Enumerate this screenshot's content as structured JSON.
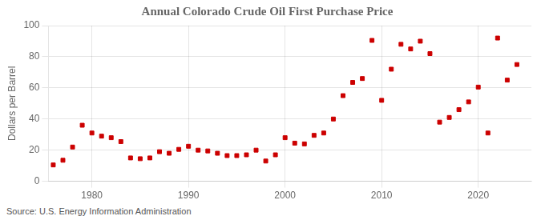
{
  "chart_data": {
    "type": "scatter",
    "title": "Annual Colorado Crude Oil First Purchase Price",
    "ylabel": "Dollars per Barrel",
    "annotation": "Source: U.S. Energy Information Administration",
    "x": [
      1976,
      1977,
      1978,
      1979,
      1980,
      1981,
      1982,
      1983,
      1984,
      1985,
      1986,
      1987,
      1988,
      1989,
      1990,
      1991,
      1992,
      1993,
      1994,
      1995,
      1996,
      1997,
      1998,
      1999,
      2000,
      2001,
      2002,
      2003,
      2004,
      2005,
      2006,
      2007,
      2008,
      2009,
      2010,
      2011,
      2012,
      2013,
      2014,
      2015,
      2016,
      2017,
      2018,
      2019,
      2020,
      2021,
      2022,
      2023,
      2024
    ],
    "values": [
      10.5,
      13.5,
      22.0,
      36.0,
      31.0,
      29.0,
      28.0,
      25.5,
      15.0,
      14.5,
      15.0,
      19.0,
      18.0,
      20.5,
      22.5,
      20.0,
      19.5,
      18.0,
      16.5,
      16.5,
      17.0,
      20.0,
      13.0,
      17.0,
      28.0,
      24.5,
      24.0,
      29.5,
      31.0,
      40.0,
      55.0,
      63.5,
      66.0,
      90.5,
      52.0,
      72.0,
      88.0,
      85.0,
      90.0,
      82.0,
      38.0,
      41.0,
      46.0,
      51.0,
      60.5,
      31.0,
      92.0,
      65.0,
      75.0
    ],
    "color": "#cc0000",
    "marker": "square",
    "xlim": [
      1975.5,
      2025.5
    ],
    "xticks": [
      1980,
      1990,
      2000,
      2010,
      2020
    ],
    "ylim": [
      0,
      100
    ],
    "yticks": [
      0,
      20,
      40,
      60,
      80,
      100
    ],
    "grid": true
  }
}
